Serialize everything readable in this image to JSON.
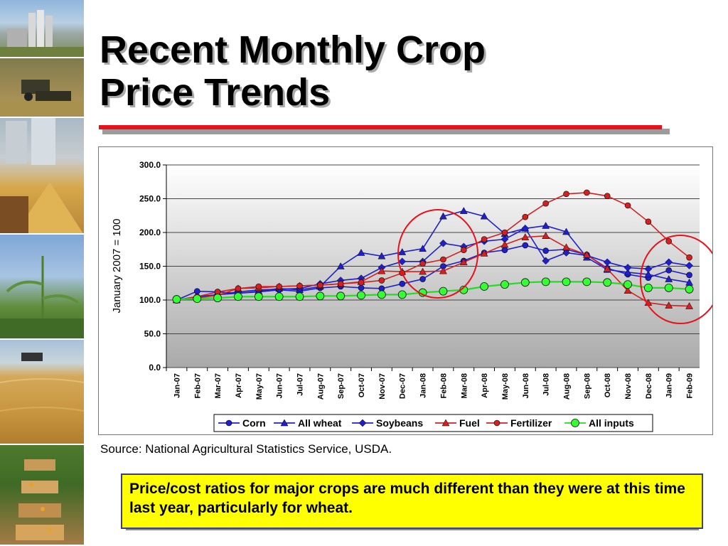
{
  "slide": {
    "title_line1": "Recent Monthly Crop",
    "title_line2": "Price Trends",
    "source": "Source: National Agricultural Statistics Service, USDA.",
    "note": "Price/cost ratios for major crops are much different than they were at this time last year, particularly for wheat.",
    "accent_color": "#e8111a",
    "note_bg_color": "#ffff00",
    "photo_strip": [
      "grain-elevator-photo",
      "combine-harvest-photo",
      "grain-pile-photo",
      "corn-field-photo",
      "wheat-field-photo",
      "orchard-crates-photo"
    ]
  },
  "chart_data": {
    "type": "line",
    "title": "",
    "xlabel": "",
    "ylabel": "January 2007 = 100",
    "ylim": [
      0,
      300
    ],
    "yticks": [
      "0.0",
      "50.0",
      "100.0",
      "150.0",
      "200.0",
      "250.0",
      "300.0"
    ],
    "categories": [
      "Jan-07",
      "Feb-07",
      "Mar-07",
      "Apr-07",
      "May-07",
      "Jun-07",
      "Jul-07",
      "Aug-07",
      "Sep-07",
      "Oct-07",
      "Nov-07",
      "Dec-07",
      "Jan-08",
      "Feb-08",
      "Mar-08",
      "Apr-08",
      "May-08",
      "Jun-08",
      "Jul-08",
      "Aug-08",
      "Sep-08",
      "Oct-08",
      "Nov-08",
      "Dec-08",
      "Jan-09",
      "Feb-09"
    ],
    "legend_position": "bottom",
    "series": [
      {
        "name": "Corn",
        "color": "#1f1fcc",
        "marker": "circle",
        "values": [
          100,
          113,
          112,
          110,
          112,
          115,
          113,
          118,
          120,
          118,
          117,
          124,
          131,
          150,
          158,
          170,
          174,
          181,
          173,
          175,
          167,
          147,
          138,
          133,
          144,
          137
        ]
      },
      {
        "name": "All wheat",
        "color": "#1f1fcc",
        "marker": "triangle",
        "values": [
          100,
          105,
          108,
          110,
          113,
          117,
          115,
          120,
          150,
          170,
          165,
          171,
          176,
          224,
          232,
          224,
          198,
          206,
          210,
          201,
          163,
          145,
          141,
          138,
          131,
          126
        ]
      },
      {
        "name": "Soybeans",
        "color": "#1f1fcc",
        "marker": "diamond",
        "values": [
          100,
          104,
          108,
          112,
          115,
          116,
          117,
          124,
          129,
          132,
          148,
          157,
          157,
          184,
          179,
          187,
          190,
          206,
          158,
          170,
          166,
          156,
          148,
          146,
          156,
          151
        ]
      },
      {
        "name": "Fuel",
        "color": "#d42020",
        "marker": "triangle",
        "values": [
          100,
          103,
          107,
          117,
          118,
          120,
          121,
          122,
          124,
          127,
          143,
          142,
          142,
          143,
          156,
          169,
          182,
          193,
          195,
          178,
          167,
          146,
          114,
          96,
          92,
          91
        ]
      },
      {
        "name": "Fertilizer",
        "color": "#d42020",
        "marker": "circle",
        "values": [
          100,
          105,
          112,
          117,
          120,
          120,
          121,
          122,
          124,
          126,
          129,
          140,
          154,
          160,
          174,
          190,
          200,
          223,
          243,
          257,
          259,
          254,
          240,
          216,
          187,
          163
        ]
      },
      {
        "name": "All inputs",
        "color": "#22dd22",
        "marker": "bigcircle",
        "values": [
          101,
          102,
          103,
          105,
          105,
          105,
          105,
          106,
          106,
          107,
          108,
          108,
          111,
          113,
          115,
          120,
          123,
          126,
          127,
          127,
          127,
          126,
          123,
          118,
          118,
          116
        ]
      }
    ],
    "highlight_circles": "two red circles: around Feb-08 to Mar-08 and around Jan-09 to Feb-09"
  }
}
